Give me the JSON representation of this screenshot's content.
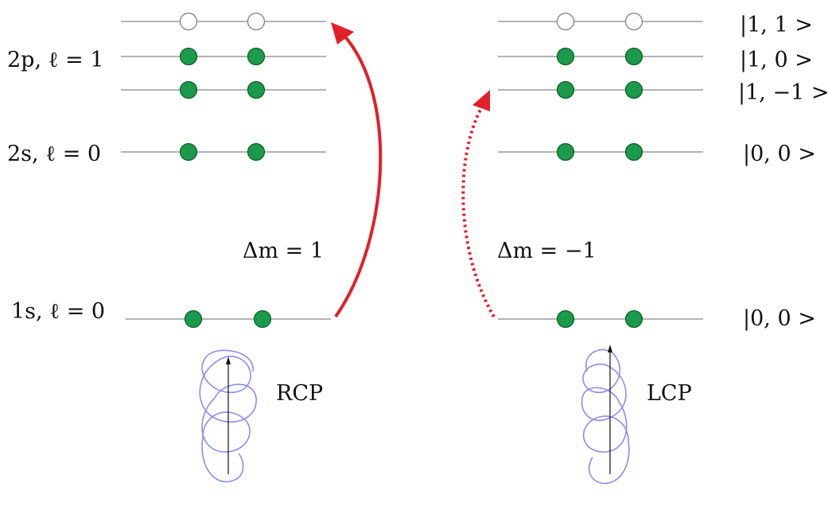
{
  "left_panel": {
    "level_labels": {
      "2p": "2p, ℓ = 1",
      "2s": "2s, ℓ = 0",
      "1s": "1s, ℓ = 0"
    },
    "transition_label": "Δm = 1",
    "polarization_label": "RCP",
    "transition_style": "solid"
  },
  "right_panel": {
    "state_labels": {
      "m_plus": "|1, 1 >",
      "m_zero": "|1, 0 >",
      "m_minus": "|1, −1 >",
      "s2": "|0, 0 >",
      "s1": "|0, 0 >"
    },
    "transition_label": "Δm = −1",
    "polarization_label": "LCP",
    "transition_style": "dotted"
  },
  "colors": {
    "electron": "#1a9a4a",
    "arrow": "#e0202a",
    "helix": "#8c8cf0",
    "level_line": "#9a9a9a"
  },
  "occupancy": {
    "2p_m_plus": "empty",
    "2p_m_zero": "filled",
    "2p_m_minus": "filled",
    "2s": "filled",
    "1s": "filled"
  }
}
